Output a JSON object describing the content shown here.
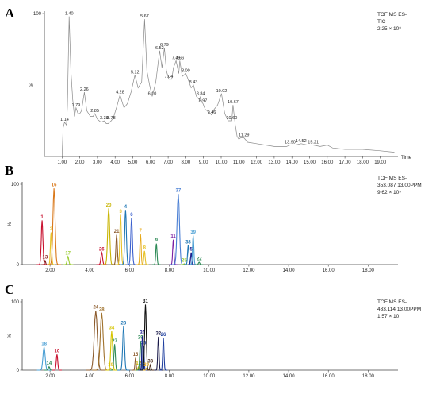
{
  "chart_data": [
    {
      "type": "line",
      "panel_letter": "A",
      "info_lines": [
        "TOF MS ES-",
        "TIC",
        "2.25 × 10⁸"
      ],
      "xlabel": "Time",
      "ylabel": "%",
      "xlim": [
        0,
        20
      ],
      "ylim": [
        0,
        100
      ],
      "x_ticks": [
        "1.00",
        "2.00",
        "3.00",
        "4.00",
        "5.00",
        "6.00",
        "7.00",
        "8.00",
        "9.00",
        "10.00",
        "11.00",
        "12.00",
        "13.00",
        "14.00",
        "15.00",
        "16.00",
        "17.00",
        "18.00",
        "19.00"
      ],
      "y_ticks": [
        "100"
      ],
      "trace_color": "#8a8a8a",
      "trace": [
        [
          0,
          0
        ],
        [
          0.9,
          0
        ],
        [
          1.0,
          0
        ],
        [
          1.06,
          20
        ],
        [
          1.14,
          24
        ],
        [
          1.25,
          22
        ],
        [
          1.3,
          35
        ],
        [
          1.4,
          98
        ],
        [
          1.5,
          60
        ],
        [
          1.6,
          40
        ],
        [
          1.7,
          28
        ],
        [
          1.79,
          34
        ],
        [
          1.9,
          30
        ],
        [
          2.0,
          30
        ],
        [
          2.1,
          32
        ],
        [
          2.26,
          45
        ],
        [
          2.4,
          32
        ],
        [
          2.6,
          28
        ],
        [
          2.75,
          28
        ],
        [
          2.85,
          30
        ],
        [
          3.0,
          26
        ],
        [
          3.2,
          24
        ],
        [
          3.38,
          25
        ],
        [
          3.5,
          23
        ],
        [
          3.6,
          23
        ],
        [
          3.78,
          25
        ],
        [
          3.9,
          27
        ],
        [
          4.1,
          35
        ],
        [
          4.28,
          43
        ],
        [
          4.5,
          34
        ],
        [
          4.7,
          37
        ],
        [
          4.9,
          45
        ],
        [
          5.12,
          57
        ],
        [
          5.3,
          48
        ],
        [
          5.5,
          52
        ],
        [
          5.67,
          96
        ],
        [
          5.8,
          60
        ],
        [
          5.95,
          50
        ],
        [
          6.1,
          42
        ],
        [
          6.3,
          52
        ],
        [
          6.52,
          74
        ],
        [
          6.65,
          62
        ],
        [
          6.79,
          76
        ],
        [
          6.9,
          60
        ],
        [
          7.04,
          54
        ],
        [
          7.2,
          54
        ],
        [
          7.3,
          62
        ],
        [
          7.45,
          67
        ],
        [
          7.6,
          58
        ],
        [
          7.66,
          67
        ],
        [
          7.8,
          56
        ],
        [
          8.0,
          58
        ],
        [
          8.1,
          55
        ],
        [
          8.3,
          48
        ],
        [
          8.43,
          50
        ],
        [
          8.6,
          42
        ],
        [
          8.75,
          40
        ],
        [
          8.84,
          42
        ],
        [
          8.9,
          38
        ],
        [
          8.97,
          37
        ],
        [
          9.1,
          33
        ],
        [
          9.2,
          32
        ],
        [
          9.46,
          29
        ],
        [
          9.6,
          33
        ],
        [
          9.8,
          36
        ],
        [
          10.02,
          44
        ],
        [
          10.2,
          30
        ],
        [
          10.4,
          25
        ],
        [
          10.6,
          25
        ],
        [
          10.67,
          36
        ],
        [
          10.8,
          22
        ],
        [
          10.9,
          14
        ],
        [
          11.0,
          12
        ],
        [
          11.1,
          13
        ],
        [
          11.29,
          13
        ],
        [
          11.5,
          10
        ],
        [
          12.0,
          9
        ],
        [
          13.0,
          7
        ],
        [
          13.7,
          7
        ],
        [
          13.9,
          8
        ],
        [
          14.2,
          8
        ],
        [
          14.52,
          9
        ],
        [
          14.9,
          8
        ],
        [
          15.21,
          8
        ],
        [
          15.6,
          7
        ],
        [
          16.0,
          8
        ],
        [
          16.3,
          6
        ],
        [
          17.0,
          5
        ],
        [
          18.0,
          5
        ],
        [
          19.0,
          4
        ],
        [
          19.8,
          3
        ]
      ],
      "peak_labels": [
        {
          "text": "1.14",
          "x": 1.14,
          "y": 24
        },
        {
          "text": "1.40",
          "x": 1.4,
          "y": 98
        },
        {
          "text": "1.79",
          "x": 1.79,
          "y": 34
        },
        {
          "text": "2.26",
          "x": 2.26,
          "y": 45
        },
        {
          "text": "2.85",
          "x": 2.85,
          "y": 30
        },
        {
          "text": "3.38",
          "x": 3.38,
          "y": 25
        },
        {
          "text": "3.78",
          "x": 3.78,
          "y": 25
        },
        {
          "text": "4.28",
          "x": 4.28,
          "y": 43
        },
        {
          "text": "5.12",
          "x": 5.12,
          "y": 57
        },
        {
          "text": "5.67",
          "x": 5.67,
          "y": 96
        },
        {
          "text": "6.10",
          "x": 6.1,
          "y": 42
        },
        {
          "text": "6.52",
          "x": 6.52,
          "y": 74
        },
        {
          "text": "6.79",
          "x": 6.79,
          "y": 76
        },
        {
          "text": "7.04",
          "x": 7.04,
          "y": 54
        },
        {
          "text": "7.45",
          "x": 7.45,
          "y": 67
        },
        {
          "text": "7.66",
          "x": 7.66,
          "y": 67
        },
        {
          "text": "8.00",
          "x": 8.0,
          "y": 58
        },
        {
          "text": "8.43",
          "x": 8.43,
          "y": 50
        },
        {
          "text": "8.84",
          "x": 8.84,
          "y": 42
        },
        {
          "text": "8.97",
          "x": 8.97,
          "y": 37
        },
        {
          "text": "9.46",
          "x": 9.46,
          "y": 29
        },
        {
          "text": "10.02",
          "x": 10.02,
          "y": 44
        },
        {
          "text": "10.67",
          "x": 10.67,
          "y": 36
        },
        {
          "text": "10.60",
          "x": 10.6,
          "y": 25
        },
        {
          "text": "11.29",
          "x": 11.29,
          "y": 13
        },
        {
          "text": "13.90",
          "x": 13.9,
          "y": 8
        },
        {
          "text": "14.52",
          "x": 14.52,
          "y": 9
        },
        {
          "text": "15.21",
          "x": 15.21,
          "y": 8
        }
      ]
    },
    {
      "type": "line",
      "panel_letter": "B",
      "info_lines": [
        "TOF MS ES-",
        "353.087 13.00PPM",
        "9.62 × 10⁵"
      ],
      "xlabel": "",
      "ylabel": "%",
      "xlim": [
        0,
        20
      ],
      "ylim": [
        0,
        100
      ],
      "x_ticks": [
        "2.00",
        "4.00",
        "6.00",
        "8.00",
        "10.00",
        "12.00",
        "14.00",
        "16.00",
        "18.00"
      ],
      "y_ticks": [
        "0",
        "100"
      ],
      "peaks": [
        {
          "label": "1",
          "rt": 1.6,
          "height": 55,
          "width": 0.09,
          "color": "#c8102e"
        },
        {
          "label": "13",
          "rt": 1.75,
          "height": 5,
          "width": 0.06,
          "color": "#8b1a1a"
        },
        {
          "label": "2",
          "rt": 2.05,
          "height": 40,
          "width": 0.07,
          "color": "#e6c229"
        },
        {
          "label": "16",
          "rt": 2.2,
          "height": 95,
          "width": 0.12,
          "color": "#d9781a"
        },
        {
          "label": "17",
          "rt": 2.9,
          "height": 10,
          "width": 0.09,
          "color": "#9acd32"
        },
        {
          "label": "26",
          "rt": 4.6,
          "height": 15,
          "width": 0.09,
          "color": "#c8102e"
        },
        {
          "label": "20",
          "rt": 4.95,
          "height": 70,
          "width": 0.11,
          "color": "#c8b400"
        },
        {
          "label": "21",
          "rt": 5.35,
          "height": 37,
          "width": 0.08,
          "color": "#8b5a2b"
        },
        {
          "label": "3",
          "rt": 5.55,
          "height": 62,
          "width": 0.08,
          "color": "#e6c229"
        },
        {
          "label": "4",
          "rt": 5.8,
          "height": 68,
          "width": 0.09,
          "color": "#1f77b4"
        },
        {
          "label": "6",
          "rt": 6.1,
          "height": 58,
          "width": 0.09,
          "color": "#3a5fcd"
        },
        {
          "label": "7",
          "rt": 6.55,
          "height": 38,
          "width": 0.07,
          "color": "#e6a817"
        },
        {
          "label": "8",
          "rt": 6.75,
          "height": 17,
          "width": 0.07,
          "color": "#e6c229"
        },
        {
          "label": "9",
          "rt": 7.35,
          "height": 26,
          "width": 0.07,
          "color": "#2e8b57"
        },
        {
          "label": "11",
          "rt": 8.2,
          "height": 31,
          "width": 0.07,
          "color": "#7b1fa2"
        },
        {
          "label": "37",
          "rt": 8.45,
          "height": 88,
          "width": 0.13,
          "color": "#4a7fd4"
        },
        {
          "label": "25",
          "rt": 8.75,
          "height": 1,
          "width": 0.06,
          "color": "#9acd32"
        },
        {
          "label": "38",
          "rt": 8.95,
          "height": 24,
          "width": 0.07,
          "color": "#1f77b4"
        },
        {
          "label": "5",
          "rt": 9.1,
          "height": 15,
          "width": 0.06,
          "color": "#1a1a8b"
        },
        {
          "label": "39",
          "rt": 9.2,
          "height": 36,
          "width": 0.07,
          "color": "#4a9fd4"
        },
        {
          "label": "22",
          "rt": 9.5,
          "height": 3,
          "width": 0.07,
          "color": "#2e8b57"
        }
      ]
    },
    {
      "type": "line",
      "panel_letter": "C",
      "info_lines": [
        "TOF MS ES-",
        "433.114 13.00PPM",
        "1.57 × 10⁷"
      ],
      "xlabel": "",
      "ylabel": "%",
      "xlim": [
        0,
        20
      ],
      "ylim": [
        0,
        100
      ],
      "x_ticks": [
        "2.00",
        "4.00",
        "6.00",
        "8.00",
        "10.00",
        "12.00",
        "14.00",
        "16.00",
        "18.00"
      ],
      "y_ticks": [
        "0",
        "100"
      ],
      "peaks": [
        {
          "label": "18",
          "rt": 1.7,
          "height": 34,
          "width": 0.12,
          "color": "#4a9fd4"
        },
        {
          "label": "14",
          "rt": 1.95,
          "height": 5,
          "width": 0.08,
          "color": "#2e8b57"
        },
        {
          "label": "10",
          "rt": 2.35,
          "height": 23,
          "width": 0.08,
          "color": "#c8102e"
        },
        {
          "label": "24",
          "rt": 4.3,
          "height": 87,
          "width": 0.17,
          "color": "#8b5a2b"
        },
        {
          "label": "28",
          "rt": 4.6,
          "height": 84,
          "width": 0.16,
          "color": "#a0722d"
        },
        {
          "label": "19",
          "rt": 5.05,
          "height": 3,
          "width": 0.07,
          "color": "#e6c229"
        },
        {
          "label": "34",
          "rt": 5.1,
          "height": 57,
          "width": 0.1,
          "color": "#d6c400"
        },
        {
          "label": "27",
          "rt": 5.25,
          "height": 38,
          "width": 0.08,
          "color": "#2e8b57"
        },
        {
          "label": "23",
          "rt": 5.7,
          "height": 64,
          "width": 0.1,
          "color": "#1f77b4"
        },
        {
          "label": "15",
          "rt": 6.3,
          "height": 18,
          "width": 0.06,
          "color": "#8b5a2b"
        },
        {
          "label": "12",
          "rt": 6.45,
          "height": 5,
          "width": 0.06,
          "color": "#c8b400"
        },
        {
          "label": "29",
          "rt": 6.55,
          "height": 43,
          "width": 0.08,
          "color": "#2e8b57"
        },
        {
          "label": "36",
          "rt": 6.65,
          "height": 50,
          "width": 0.07,
          "color": "#1a1a8b"
        },
        {
          "label": "35",
          "rt": 6.7,
          "height": 35,
          "width": 0.07,
          "color": "#1f3f9f"
        },
        {
          "label": "31",
          "rt": 6.8,
          "height": 96,
          "width": 0.09,
          "color": "#111111"
        },
        {
          "label": "30",
          "rt": 6.85,
          "height": 3,
          "width": 0.05,
          "color": "#e6a817"
        },
        {
          "label": "33",
          "rt": 7.05,
          "height": 8,
          "width": 0.06,
          "color": "#4a2a1a"
        },
        {
          "label": "32",
          "rt": 7.45,
          "height": 49,
          "width": 0.07,
          "color": "#1a1a4a"
        },
        {
          "label": "26",
          "rt": 7.7,
          "height": 47,
          "width": 0.07,
          "color": "#1f3f9f"
        }
      ]
    }
  ]
}
